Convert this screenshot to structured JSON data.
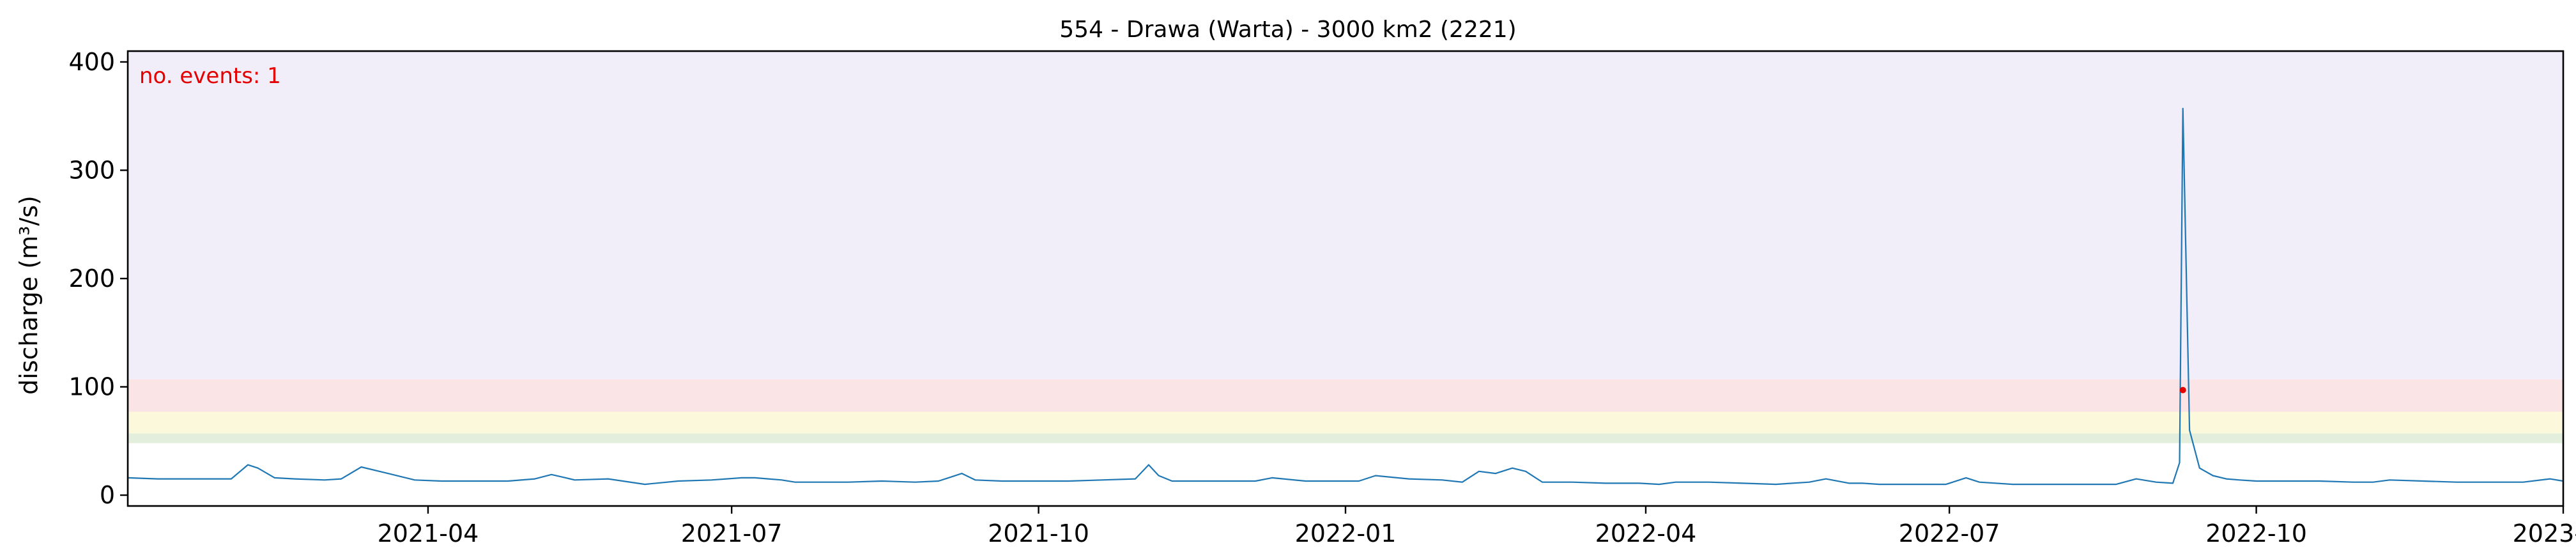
{
  "chart_data": {
    "type": "line",
    "title": "554 - Drawa (Warta) - 3000 km2 (2221)",
    "xlabel": "",
    "ylabel": "discharge (m³/s)",
    "annotation": "no. events: 1",
    "xlim": [
      "2021-01-01",
      "2023-01-01"
    ],
    "ylim": [
      -10,
      410
    ],
    "x_ticks": [
      "2021-04-01",
      "2021-07-01",
      "2021-10-01",
      "2022-01-01",
      "2022-04-01",
      "2022-07-01",
      "2022-10-01",
      "2023-01-01"
    ],
    "x_tick_labels": [
      "2021-04",
      "2021-07",
      "2021-10",
      "2022-01",
      "2022-04",
      "2022-07",
      "2022-10",
      "2023-01"
    ],
    "y_ticks": [
      0,
      100,
      200,
      300,
      400
    ],
    "y_tick_labels": [
      "0",
      "100",
      "200",
      "300",
      "400"
    ],
    "bands": [
      {
        "from": 48,
        "to": 57,
        "color": "#e3efdc"
      },
      {
        "from": 57,
        "to": 77,
        "color": "#fbf8dc"
      },
      {
        "from": 77,
        "to": 107,
        "color": "#fbe4e6"
      },
      {
        "from": 107,
        "to": 410,
        "color": "#f1eefa"
      }
    ],
    "series": [
      {
        "color": "#1f77b4",
        "x": [
          "2021-01-01",
          "2021-01-10",
          "2021-01-20",
          "2021-02-01",
          "2021-02-06",
          "2021-02-09",
          "2021-02-14",
          "2021-02-20",
          "2021-03-01",
          "2021-03-06",
          "2021-03-12",
          "2021-03-20",
          "2021-03-28",
          "2021-04-05",
          "2021-04-15",
          "2021-04-25",
          "2021-05-03",
          "2021-05-08",
          "2021-05-15",
          "2021-05-25",
          "2021-06-05",
          "2021-06-15",
          "2021-06-25",
          "2021-07-04",
          "2021-07-08",
          "2021-07-12",
          "2021-07-16",
          "2021-07-20",
          "2021-07-25",
          "2021-08-05",
          "2021-08-15",
          "2021-08-25",
          "2021-09-01",
          "2021-09-04",
          "2021-09-08",
          "2021-09-12",
          "2021-09-20",
          "2021-10-01",
          "2021-10-10",
          "2021-10-20",
          "2021-10-30",
          "2021-11-03",
          "2021-11-06",
          "2021-11-10",
          "2021-11-20",
          "2021-11-30",
          "2021-12-05",
          "2021-12-10",
          "2021-12-20",
          "2021-12-30",
          "2022-01-05",
          "2022-01-10",
          "2022-01-20",
          "2022-01-30",
          "2022-02-05",
          "2022-02-10",
          "2022-02-15",
          "2022-02-20",
          "2022-02-24",
          "2022-03-01",
          "2022-03-10",
          "2022-03-20",
          "2022-03-30",
          "2022-04-05",
          "2022-04-10",
          "2022-04-20",
          "2022-04-30",
          "2022-05-10",
          "2022-05-20",
          "2022-05-25",
          "2022-06-01",
          "2022-06-05",
          "2022-06-10",
          "2022-06-20",
          "2022-06-30",
          "2022-07-06",
          "2022-07-10",
          "2022-07-20",
          "2022-07-30",
          "2022-08-10",
          "2022-08-20",
          "2022-08-26",
          "2022-09-01",
          "2022-09-06",
          "2022-09-08",
          "2022-09-09",
          "2022-09-11",
          "2022-09-14",
          "2022-09-18",
          "2022-09-22",
          "2022-09-26",
          "2022-10-01",
          "2022-10-10",
          "2022-10-20",
          "2022-10-30",
          "2022-11-05",
          "2022-11-10",
          "2022-11-20",
          "2022-11-30",
          "2022-12-10",
          "2022-12-20",
          "2022-12-28",
          "2023-01-01"
        ],
        "y": [
          16,
          15,
          15,
          15,
          28,
          25,
          16,
          15,
          14,
          15,
          26,
          20,
          14,
          13,
          13,
          13,
          15,
          19,
          14,
          15,
          10,
          13,
          14,
          16,
          16,
          15,
          14,
          12,
          12,
          12,
          13,
          12,
          13,
          16,
          20,
          14,
          13,
          13,
          13,
          14,
          15,
          28,
          18,
          13,
          13,
          13,
          13,
          16,
          13,
          13,
          13,
          18,
          15,
          14,
          12,
          22,
          20,
          25,
          22,
          12,
          12,
          11,
          11,
          10,
          12,
          12,
          11,
          10,
          12,
          15,
          11,
          11,
          10,
          10,
          10,
          16,
          12,
          10,
          10,
          10,
          10,
          15,
          12,
          11,
          30,
          357,
          60,
          25,
          18,
          15,
          14,
          13,
          13,
          13,
          12,
          12,
          14,
          13,
          12,
          12,
          12,
          15,
          13
        ]
      }
    ],
    "events": [
      {
        "x": "2022-09-09",
        "y": 97,
        "color": "#e30000"
      }
    ]
  }
}
